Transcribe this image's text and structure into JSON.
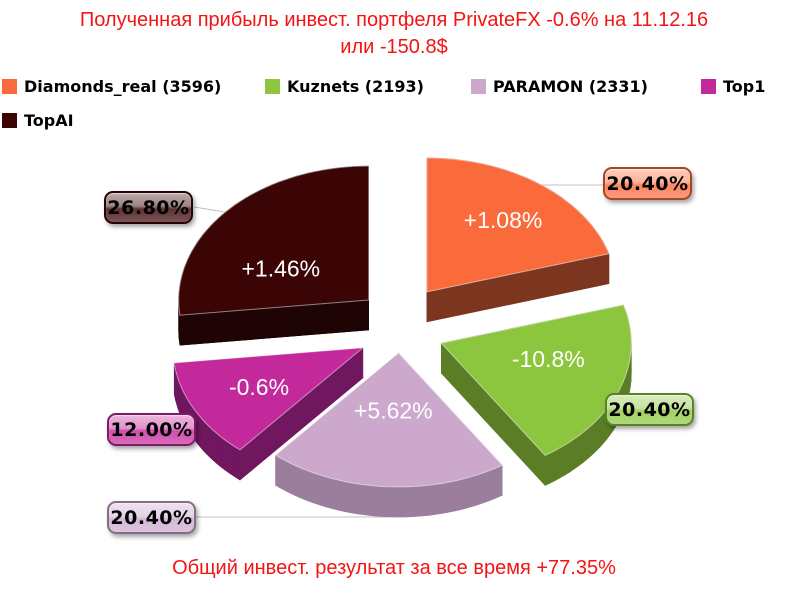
{
  "title": {
    "lines": [
      "Полученная прибыль инвест. портфеля PrivateFX -0.6% на 11.12.16",
      "или -150.8$"
    ]
  },
  "footer": {
    "text": "Общий инвест. результат за все время +77.35%"
  },
  "colors": {
    "title_text": "#f31414",
    "footer_text": "#f31414",
    "leader_line": "#c0c0c0",
    "slice_label_text": "#ffffff",
    "callout_text": "#000000",
    "legend_text": "#000000"
  },
  "legend": {
    "items": [
      {
        "label": "Diamonds_real (3596)",
        "color": "#fb6a3b"
      },
      {
        "label": "Kuznets (2193)",
        "color": "#8cc63e"
      },
      {
        "label": "PARAMON (2331)",
        "color": "#cba8cc"
      },
      {
        "label": "Top1",
        "color": "#c3299b"
      },
      {
        "label": "TopAI",
        "color": "#3b0506"
      }
    ]
  },
  "chart_data": {
    "type": "pie",
    "style": "3d-exploded",
    "title": "Полученная прибыль инвест. портфеля PrivateFX -0.6% на 11.12.16 или -150.8$",
    "footnote": "Общий инвест. результат за все время +77.35%",
    "start_angle_deg": 0,
    "direction": "clockwise",
    "legend_position": "top",
    "slices": [
      {
        "name": "Diamonds_real",
        "count_label": "3596",
        "share_pct": 20.4,
        "callout": "20.40%",
        "return_label": "+1.08%",
        "color": "#fb6a3b",
        "side_color": "#7c351e"
      },
      {
        "name": "Kuznets",
        "count_label": "2193",
        "share_pct": 20.4,
        "callout": "20.40%",
        "return_label": "-10.8%",
        "color": "#8cc63e",
        "side_color": "#5b7d26"
      },
      {
        "name": "PARAMON",
        "count_label": "2331",
        "share_pct": 20.4,
        "callout": "20.40%",
        "return_label": "+5.62%",
        "color": "#cba8cc",
        "side_color": "#9a7e9c"
      },
      {
        "name": "Top1",
        "count_label": "",
        "share_pct": 12.0,
        "callout": "12.00%",
        "return_label": "-0.6%",
        "color": "#c3299b",
        "side_color": "#701760"
      },
      {
        "name": "TopAI",
        "count_label": "",
        "share_pct": 26.8,
        "callout": "26.80%",
        "return_label": "+1.46%",
        "color": "#3b0506",
        "side_color": "#1e0405"
      }
    ]
  }
}
